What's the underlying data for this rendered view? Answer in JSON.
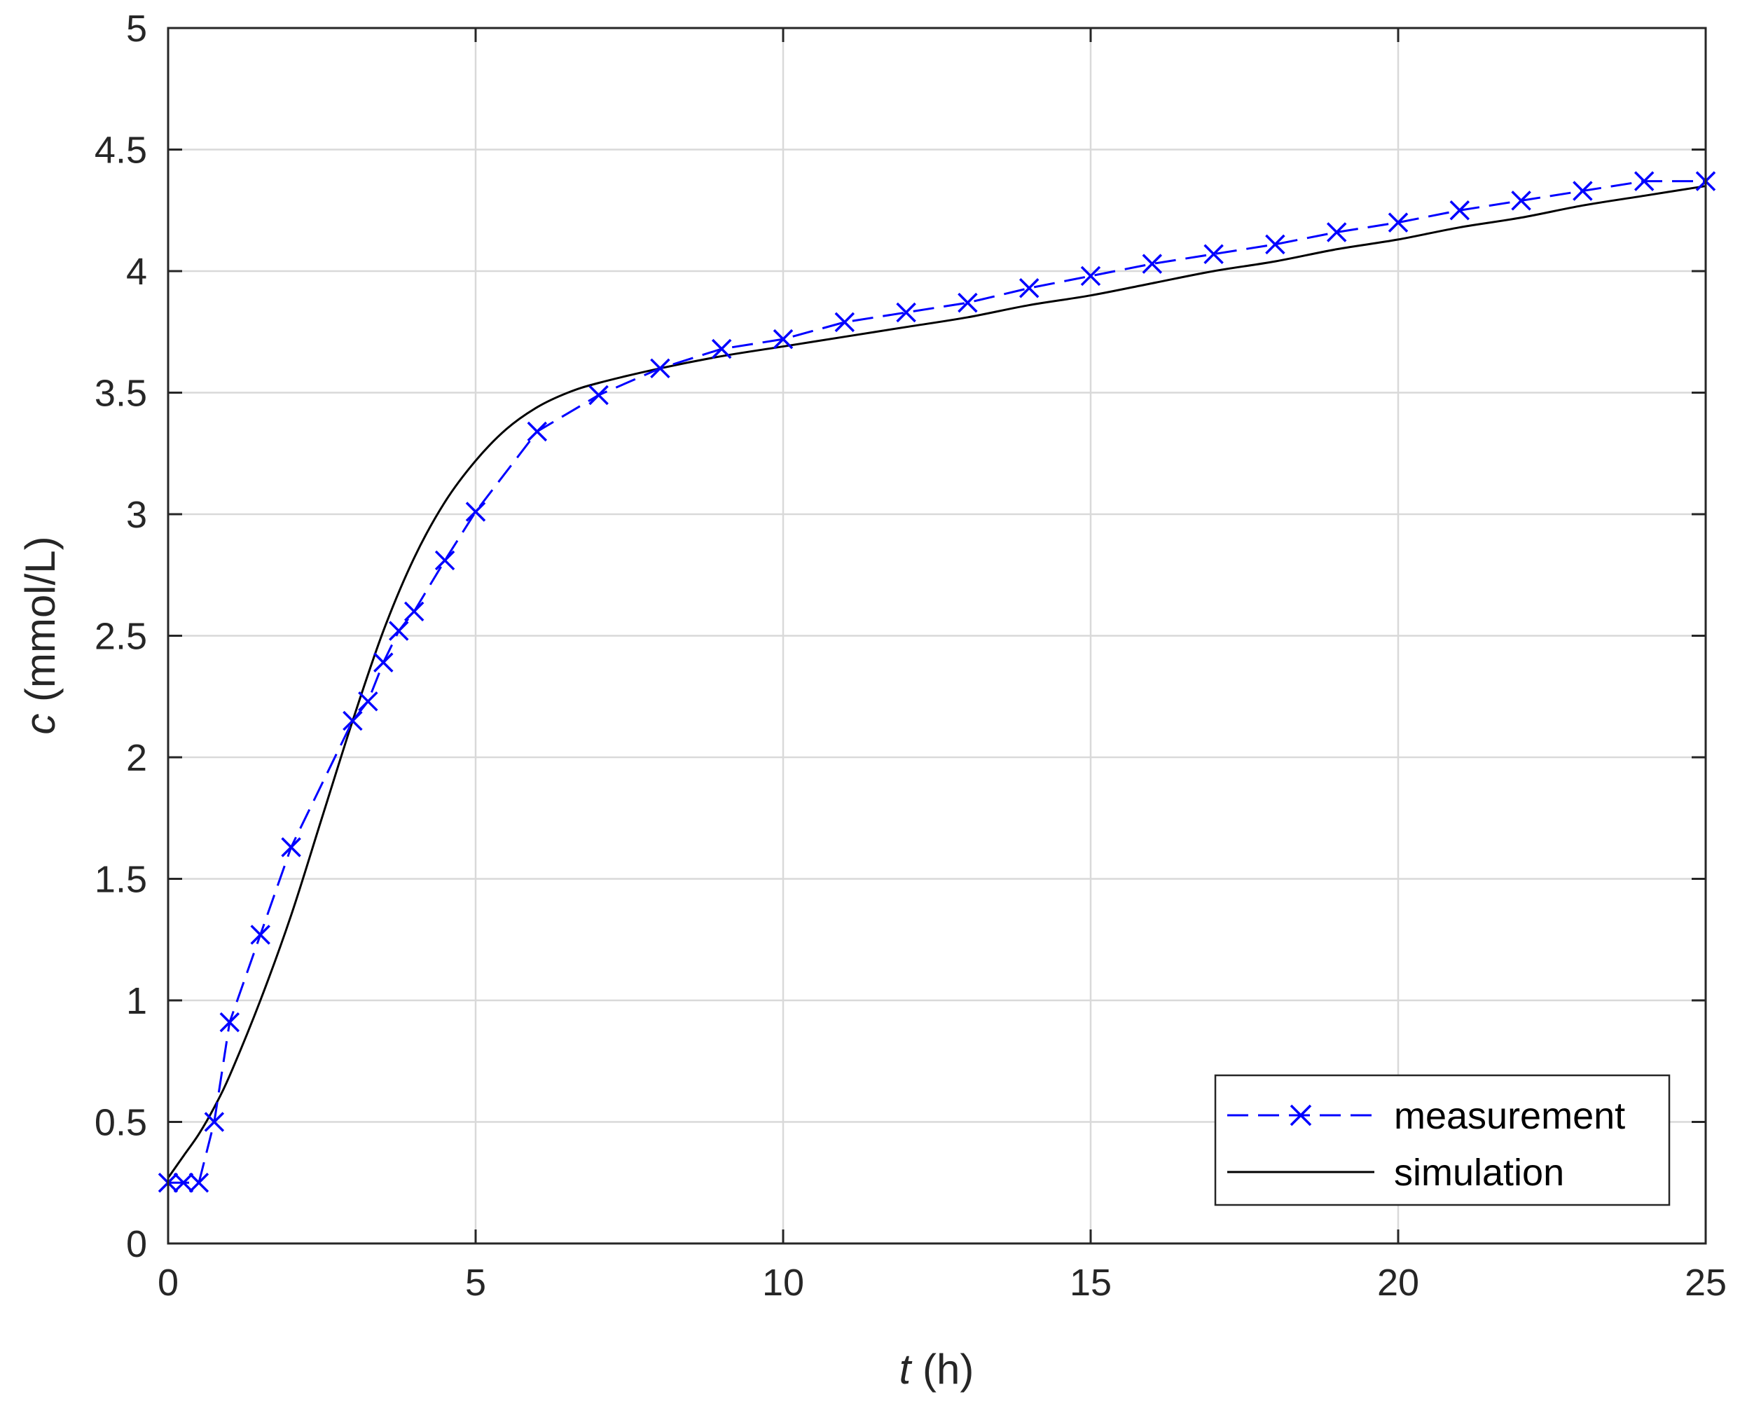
{
  "chart_data": {
    "type": "line",
    "xlabel_var": "t",
    "xlabel_unit": " (h)",
    "ylabel_var": "c",
    "ylabel_unit": " (mmol/L)",
    "xlim": [
      0,
      25
    ],
    "ylim": [
      0,
      5
    ],
    "xticks": [
      "0",
      "5",
      "10",
      "15",
      "20",
      "25"
    ],
    "yticks": [
      "0",
      "0.5",
      "1",
      "1.5",
      "2",
      "2.5",
      "3",
      "3.5",
      "4",
      "4.5",
      "5"
    ],
    "grid": true,
    "legend_position": "bottom-right",
    "series": [
      {
        "name": "measurement",
        "color": "#0000ff",
        "line_style": "dashed",
        "marker": "x",
        "x": [
          0,
          0.25,
          0.5,
          0.75,
          1,
          1.5,
          2,
          3,
          3.25,
          3.5,
          3.75,
          4,
          4.5,
          5,
          6,
          7,
          8,
          9,
          10,
          11,
          12,
          13,
          14,
          15,
          16,
          17,
          18,
          19,
          20,
          21,
          22,
          23,
          24,
          25
        ],
        "y": [
          0.25,
          0.25,
          0.25,
          0.5,
          0.91,
          1.27,
          1.63,
          2.15,
          2.23,
          2.39,
          2.52,
          2.6,
          2.81,
          3.01,
          3.34,
          3.49,
          3.6,
          3.68,
          3.72,
          3.79,
          3.83,
          3.87,
          3.93,
          3.98,
          4.03,
          4.07,
          4.11,
          4.16,
          4.2,
          4.25,
          4.29,
          4.33,
          4.37,
          4.37
        ]
      },
      {
        "name": "simulation",
        "color": "#000000",
        "line_style": "solid",
        "marker": "none",
        "x": [
          0,
          0.25,
          0.5,
          0.75,
          1,
          1.5,
          2,
          2.5,
          3,
          3.5,
          4,
          4.5,
          5,
          5.5,
          6,
          6.5,
          7,
          8,
          9,
          10,
          11,
          12,
          13,
          14,
          15,
          16,
          17,
          18,
          19,
          20,
          21,
          22,
          23,
          24,
          25
        ],
        "y": [
          0.27,
          0.36,
          0.45,
          0.56,
          0.69,
          1.0,
          1.35,
          1.75,
          2.15,
          2.52,
          2.82,
          3.05,
          3.22,
          3.35,
          3.44,
          3.5,
          3.54,
          3.6,
          3.65,
          3.69,
          3.73,
          3.77,
          3.81,
          3.86,
          3.9,
          3.95,
          4.0,
          4.04,
          4.09,
          4.13,
          4.18,
          4.22,
          4.27,
          4.31,
          4.35
        ]
      }
    ]
  }
}
